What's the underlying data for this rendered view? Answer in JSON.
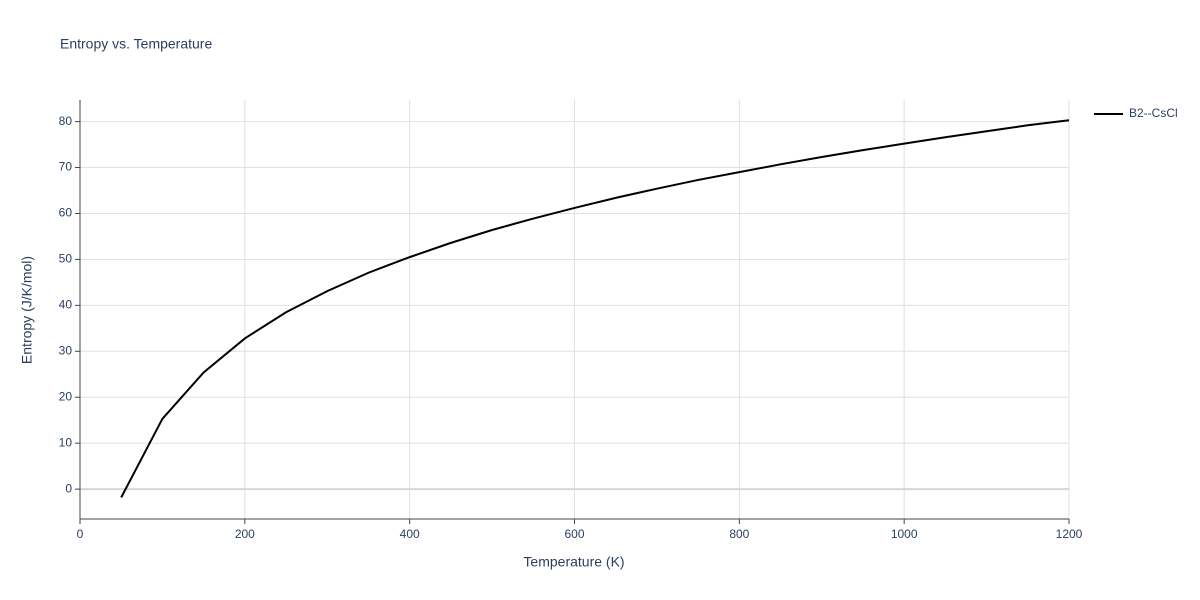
{
  "chart_data": {
    "type": "line",
    "title": "Entropy vs. Temperature",
    "x_label": "Temperature (K)",
    "y_label": "Entropy (J/K/mol)",
    "x": [
      50,
      100,
      150,
      200,
      250,
      300,
      350,
      400,
      450,
      500,
      550,
      600,
      650,
      700,
      750,
      800,
      850,
      900,
      950,
      1000,
      1050,
      1100,
      1150,
      1200
    ],
    "series": [
      {
        "name": "B2--CsCl",
        "color": "#000000",
        "values": [
          -1.8,
          15.3,
          25.4,
          32.8,
          38.5,
          43.1,
          47.1,
          50.5,
          53.6,
          56.4,
          58.9,
          61.2,
          63.4,
          65.4,
          67.3,
          69.0,
          70.7,
          72.3,
          73.8,
          75.2,
          76.6,
          77.9,
          79.2,
          80.3
        ]
      }
    ],
    "xlim": [
      0,
      1200
    ],
    "xticks": [
      0,
      200,
      400,
      600,
      800,
      1000,
      1200
    ],
    "ylim": [
      -6.5,
      84.7
    ],
    "yticks": [
      0,
      10,
      20,
      30,
      40,
      50,
      60,
      70,
      80
    ],
    "grid": true,
    "legend": "outside-right"
  }
}
